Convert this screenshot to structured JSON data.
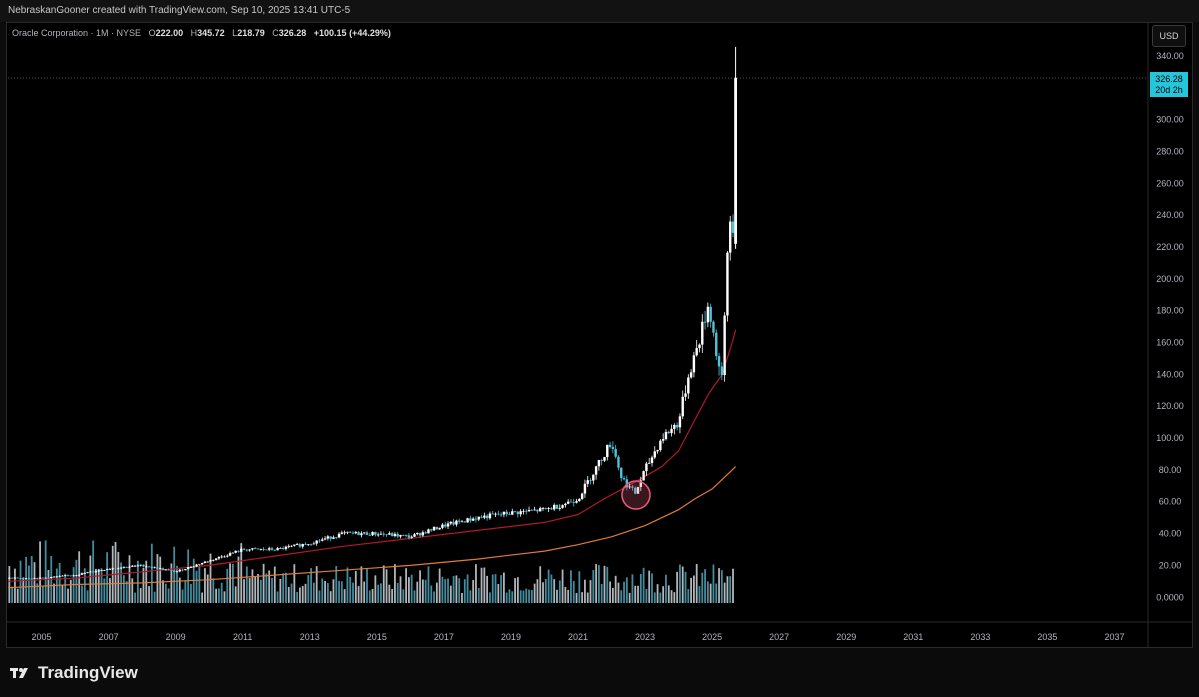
{
  "header": {
    "attribution": "NebraskanGooner created with TradingView.com, Sep 10, 2025 13:41 UTC-5"
  },
  "legend": {
    "symbol": "Oracle Corporation · 1M · NYSE",
    "o_label": "O",
    "o_value": "222.00",
    "h_label": "H",
    "h_value": "345.72",
    "l_label": "L",
    "l_value": "218.79",
    "c_label": "C",
    "c_value": "326.28",
    "change": "+100.15 (+44.29%)"
  },
  "toolbar": {
    "currency": "USD"
  },
  "price_tag": {
    "price": "326.28",
    "countdown": "20d 2h"
  },
  "brand": {
    "name": "TradingView"
  },
  "colors": {
    "background": "#000000",
    "candle_up": "#ffffff",
    "candle_down": "#4fc3d9",
    "ma_short": "#b2182b",
    "ma_long": "#e07b39",
    "highlight_circle": "#e8587a",
    "price_tag": "#26c6da"
  },
  "chart_data": {
    "type": "candlestick",
    "title": "Oracle Corporation · 1M · NYSE",
    "xlabel": "",
    "ylabel": "",
    "xlim": [
      2004.0,
      2038.0
    ],
    "ylim": [
      -8,
      350
    ],
    "x_ticks": [
      "2005",
      "2007",
      "2009",
      "2011",
      "2013",
      "2015",
      "2017",
      "2019",
      "2021",
      "2023",
      "2025",
      "2027",
      "2029",
      "2031",
      "2033",
      "2035",
      "2037"
    ],
    "y_ticks": [
      "340.00",
      "300.00",
      "280.00",
      "260.00",
      "240.00",
      "220.00",
      "200.00",
      "180.00",
      "160.00",
      "140.00",
      "120.00",
      "100.00",
      "80.00",
      "60.00",
      "40.00",
      "20.00",
      "0.0000"
    ],
    "grid": false,
    "last_price": 326.28,
    "price_points": [
      [
        2004.0,
        12
      ],
      [
        2005.0,
        12
      ],
      [
        2006.0,
        14
      ],
      [
        2007.0,
        18
      ],
      [
        2008.0,
        20
      ],
      [
        2009.0,
        16
      ],
      [
        2010.0,
        23
      ],
      [
        2011.0,
        30
      ],
      [
        2012.0,
        30
      ],
      [
        2013.0,
        34
      ],
      [
        2014.0,
        40
      ],
      [
        2015.0,
        40
      ],
      [
        2016.0,
        38
      ],
      [
        2017.0,
        45
      ],
      [
        2018.0,
        50
      ],
      [
        2019.0,
        53
      ],
      [
        2020.0,
        55
      ],
      [
        2020.5,
        58
      ],
      [
        2021.0,
        62
      ],
      [
        2021.5,
        80
      ],
      [
        2022.0,
        98
      ],
      [
        2022.3,
        75
      ],
      [
        2022.7,
        65
      ],
      [
        2023.0,
        80
      ],
      [
        2023.5,
        100
      ],
      [
        2024.0,
        110
      ],
      [
        2024.3,
        140
      ],
      [
        2024.6,
        160
      ],
      [
        2024.9,
        185
      ],
      [
        2025.15,
        150
      ],
      [
        2025.3,
        135
      ],
      [
        2025.45,
        215
      ],
      [
        2025.55,
        238
      ],
      [
        2025.65,
        230
      ],
      [
        2025.7,
        326.28
      ]
    ],
    "series": [
      {
        "name": "",
        "points": [
          [
            2004.0,
            10
          ],
          [
            2006.0,
            12
          ],
          [
            2008.0,
            16
          ],
          [
            2010.0,
            20
          ],
          [
            2012.0,
            26
          ],
          [
            2014.0,
            32
          ],
          [
            2016.0,
            37
          ],
          [
            2018.0,
            42
          ],
          [
            2020.0,
            47
          ],
          [
            2021.0,
            52
          ],
          [
            2021.8,
            62
          ],
          [
            2022.5,
            70
          ],
          [
            2023.0,
            76
          ],
          [
            2023.5,
            82
          ],
          [
            2024.0,
            92
          ],
          [
            2024.5,
            112
          ],
          [
            2024.9,
            128
          ],
          [
            2025.3,
            140
          ],
          [
            2025.6,
            160
          ],
          [
            2025.7,
            168
          ]
        ]
      },
      {
        "name": "",
        "points": [
          [
            2004.0,
            6
          ],
          [
            2006.0,
            8
          ],
          [
            2008.0,
            9
          ],
          [
            2010.0,
            11
          ],
          [
            2012.0,
            14
          ],
          [
            2014.0,
            17
          ],
          [
            2016.0,
            20
          ],
          [
            2018.0,
            24
          ],
          [
            2020.0,
            29
          ],
          [
            2021.0,
            33
          ],
          [
            2022.0,
            38
          ],
          [
            2023.0,
            45
          ],
          [
            2023.5,
            50
          ],
          [
            2024.0,
            55
          ],
          [
            2024.5,
            62
          ],
          [
            2025.0,
            68
          ],
          [
            2025.4,
            76
          ],
          [
            2025.7,
            82
          ]
        ]
      }
    ],
    "volume_note": "volume histogram at bottom of pane"
  }
}
